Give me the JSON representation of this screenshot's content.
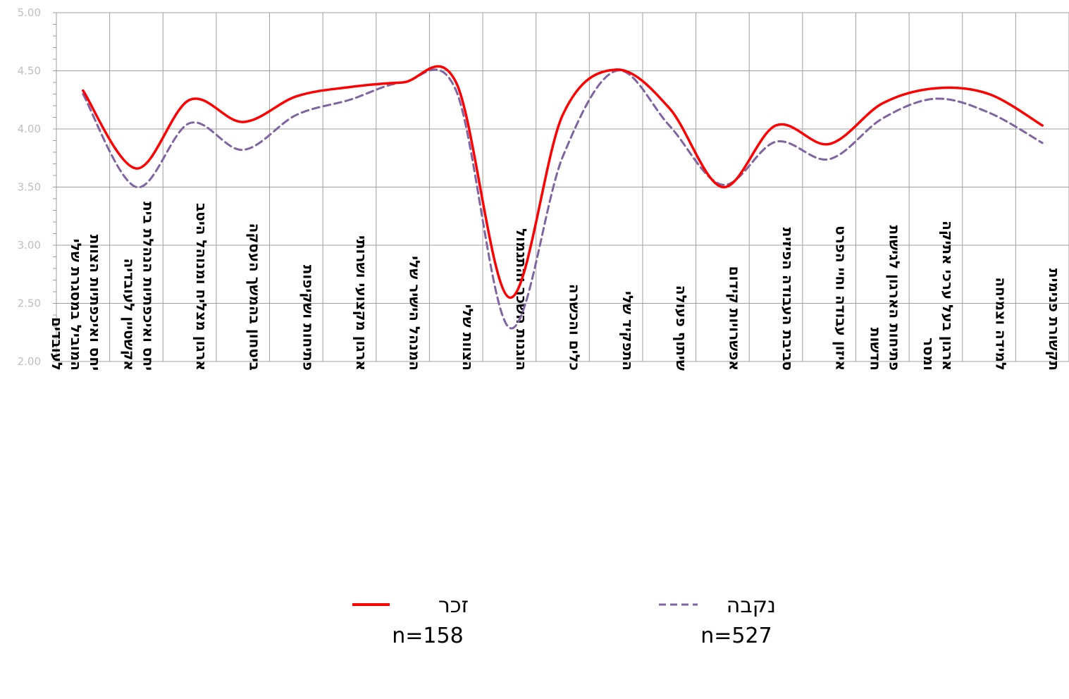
{
  "chart_data": {
    "type": "line",
    "categories": [
      "יחס ואיכפתיות הצוות המוביל במסגרת שלי לעובדים",
      "יחס ואיכפתיות הנהלת בית אקשטיין לעובדיה",
      "ארגון מצליח ומנוהל היטב",
      "ביטחון בהמשך העסקה",
      "פתיחות ושקיפות",
      "ארגון מקצועי ושרותי",
      "המנהל הישיר שלי",
      "הצוות שלי",
      "הוגנות השכר והתגמול",
      "כלים והכשרה",
      "התפקיד שלי",
      "שיתוף פעולה",
      "אפשרויות קידום",
      "סביבת העבודה הפיזית",
      "איזון עבודה וחיי הפרט",
      "פתיחות הארגון לגישות חדשות",
      "ארגון בעל ערכי אתיקה ומסר",
      "למידה וצמיחה",
      "תקשורת פנימית"
    ],
    "series": [
      {
        "name": "זכר",
        "n_label": "n=158",
        "color": "#ff0000",
        "dash": "solid",
        "values": [
          4.33,
          3.66,
          4.25,
          4.06,
          4.28,
          4.36,
          4.4,
          4.4,
          2.55,
          4.12,
          4.51,
          4.18,
          3.5,
          4.03,
          3.87,
          4.22,
          4.35,
          4.3,
          4.03
        ]
      },
      {
        "name": "נקבה",
        "n_label": "n=527",
        "color": "#8064a2",
        "dash": "dashed",
        "values": [
          4.3,
          3.5,
          4.05,
          3.82,
          4.12,
          4.25,
          4.4,
          4.33,
          2.29,
          3.76,
          4.5,
          4.03,
          3.52,
          3.89,
          3.74,
          4.09,
          4.26,
          4.14,
          3.88
        ]
      }
    ],
    "ylim": [
      2.0,
      5.0
    ],
    "yticks": [
      "2.00",
      "2.50",
      "3.00",
      "3.50",
      "4.00",
      "4.50",
      "5.00"
    ],
    "grid": true,
    "legend_position": "bottom-center"
  }
}
